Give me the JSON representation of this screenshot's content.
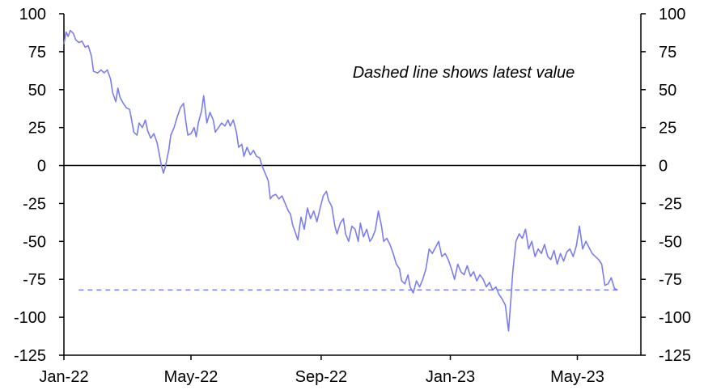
{
  "chart_data": {
    "type": "line",
    "annotation": "Dashed line shows latest value",
    "ylim": [
      -125,
      100
    ],
    "yticks": [
      100,
      75,
      50,
      25,
      0,
      -25,
      -50,
      -75,
      -100,
      -125
    ],
    "xlim": [
      "2022-01-01",
      "2023-06-30"
    ],
    "xticks": [
      {
        "date": "2022-01-01",
        "label": "Jan-22"
      },
      {
        "date": "2022-05-01",
        "label": "May-22"
      },
      {
        "date": "2022-09-01",
        "label": "Sep-22"
      },
      {
        "date": "2023-01-01",
        "label": "Jan-23"
      },
      {
        "date": "2023-05-01",
        "label": "May-23"
      }
    ],
    "grid": false,
    "zero_line": true,
    "series_color": "#7b7cf0",
    "latest_value": -82,
    "latest_value_line_start": "2022-01-15",
    "series": [
      {
        "points": [
          [
            "2022-01-01",
            80
          ],
          [
            "2022-01-03",
            88
          ],
          [
            "2022-01-05",
            85
          ],
          [
            "2022-01-07",
            89
          ],
          [
            "2022-01-10",
            87
          ],
          [
            "2022-01-12",
            83
          ],
          [
            "2022-01-15",
            81
          ],
          [
            "2022-01-18",
            82
          ],
          [
            "2022-01-21",
            78
          ],
          [
            "2022-01-24",
            79
          ],
          [
            "2022-01-27",
            72
          ],
          [
            "2022-01-29",
            62
          ],
          [
            "2022-02-02",
            61
          ],
          [
            "2022-02-05",
            63
          ],
          [
            "2022-02-08",
            61
          ],
          [
            "2022-02-11",
            63
          ],
          [
            "2022-02-14",
            57
          ],
          [
            "2022-02-16",
            48
          ],
          [
            "2022-02-19",
            42
          ],
          [
            "2022-02-21",
            51
          ],
          [
            "2022-02-23",
            45
          ],
          [
            "2022-02-26",
            41
          ],
          [
            "2022-03-01",
            38
          ],
          [
            "2022-03-04",
            37
          ],
          [
            "2022-03-06",
            30
          ],
          [
            "2022-03-08",
            22
          ],
          [
            "2022-03-11",
            20
          ],
          [
            "2022-03-13",
            28
          ],
          [
            "2022-03-16",
            25
          ],
          [
            "2022-03-19",
            30
          ],
          [
            "2022-03-21",
            23
          ],
          [
            "2022-03-24",
            18
          ],
          [
            "2022-03-27",
            21
          ],
          [
            "2022-03-30",
            15
          ],
          [
            "2022-04-01",
            8
          ],
          [
            "2022-04-03",
            0
          ],
          [
            "2022-04-05",
            -5
          ],
          [
            "2022-04-07",
            0
          ],
          [
            "2022-04-10",
            10
          ],
          [
            "2022-04-12",
            20
          ],
          [
            "2022-04-15",
            25
          ],
          [
            "2022-04-18",
            32
          ],
          [
            "2022-04-21",
            38
          ],
          [
            "2022-04-24",
            41
          ],
          [
            "2022-04-26",
            30
          ],
          [
            "2022-04-28",
            20
          ],
          [
            "2022-05-01",
            21
          ],
          [
            "2022-05-04",
            25
          ],
          [
            "2022-05-06",
            19
          ],
          [
            "2022-05-08",
            28
          ],
          [
            "2022-05-11",
            36
          ],
          [
            "2022-05-13",
            46
          ],
          [
            "2022-05-16",
            28
          ],
          [
            "2022-05-19",
            35
          ],
          [
            "2022-05-22",
            30
          ],
          [
            "2022-05-24",
            22
          ],
          [
            "2022-05-27",
            25
          ],
          [
            "2022-05-30",
            28
          ],
          [
            "2022-06-02",
            26
          ],
          [
            "2022-06-05",
            30
          ],
          [
            "2022-06-07",
            26
          ],
          [
            "2022-06-10",
            30
          ],
          [
            "2022-06-13",
            22
          ],
          [
            "2022-06-15",
            12
          ],
          [
            "2022-06-18",
            14
          ],
          [
            "2022-06-20",
            6
          ],
          [
            "2022-06-23",
            12
          ],
          [
            "2022-06-26",
            7
          ],
          [
            "2022-06-29",
            10
          ],
          [
            "2022-07-02",
            6
          ],
          [
            "2022-07-05",
            5
          ],
          [
            "2022-07-07",
            0
          ],
          [
            "2022-07-10",
            -5
          ],
          [
            "2022-07-13",
            -10
          ],
          [
            "2022-07-15",
            -22
          ],
          [
            "2022-07-17",
            -20
          ],
          [
            "2022-07-20",
            -19
          ],
          [
            "2022-07-23",
            -22
          ],
          [
            "2022-07-26",
            -20
          ],
          [
            "2022-07-29",
            -25
          ],
          [
            "2022-08-01",
            -30
          ],
          [
            "2022-08-03",
            -32
          ],
          [
            "2022-08-05",
            -39
          ],
          [
            "2022-08-08",
            -45
          ],
          [
            "2022-08-10",
            -49
          ],
          [
            "2022-08-13",
            -34
          ],
          [
            "2022-08-16",
            -42
          ],
          [
            "2022-08-19",
            -28
          ],
          [
            "2022-08-22",
            -35
          ],
          [
            "2022-08-25",
            -30
          ],
          [
            "2022-08-28",
            -37
          ],
          [
            "2022-08-31",
            -28
          ],
          [
            "2022-09-03",
            -20
          ],
          [
            "2022-09-06",
            -17
          ],
          [
            "2022-09-08",
            -23
          ],
          [
            "2022-09-11",
            -27
          ],
          [
            "2022-09-14",
            -40
          ],
          [
            "2022-09-16",
            -45
          ],
          [
            "2022-09-19",
            -38
          ],
          [
            "2022-09-22",
            -35
          ],
          [
            "2022-09-24",
            -45
          ],
          [
            "2022-09-27",
            -50
          ],
          [
            "2022-09-30",
            -40
          ],
          [
            "2022-10-03",
            -42
          ],
          [
            "2022-10-06",
            -50
          ],
          [
            "2022-10-08",
            -38
          ],
          [
            "2022-10-11",
            -47
          ],
          [
            "2022-10-14",
            -42
          ],
          [
            "2022-10-17",
            -50
          ],
          [
            "2022-10-19",
            -48
          ],
          [
            "2022-10-22",
            -43
          ],
          [
            "2022-10-25",
            -30
          ],
          [
            "2022-10-28",
            -40
          ],
          [
            "2022-10-30",
            -50
          ],
          [
            "2022-11-02",
            -48
          ],
          [
            "2022-11-05",
            -52
          ],
          [
            "2022-11-08",
            -58
          ],
          [
            "2022-11-11",
            -65
          ],
          [
            "2022-11-14",
            -68
          ],
          [
            "2022-11-16",
            -76
          ],
          [
            "2022-11-19",
            -78
          ],
          [
            "2022-11-22",
            -72
          ],
          [
            "2022-11-24",
            -80
          ],
          [
            "2022-11-27",
            -84
          ],
          [
            "2022-11-30",
            -76
          ],
          [
            "2022-12-03",
            -80
          ],
          [
            "2022-12-06",
            -75
          ],
          [
            "2022-12-09",
            -68
          ],
          [
            "2022-12-12",
            -55
          ],
          [
            "2022-12-15",
            -58
          ],
          [
            "2022-12-18",
            -54
          ],
          [
            "2022-12-21",
            -50
          ],
          [
            "2022-12-24",
            -60
          ],
          [
            "2022-12-27",
            -58
          ],
          [
            "2022-12-30",
            -62
          ],
          [
            "2023-01-02",
            -68
          ],
          [
            "2023-01-05",
            -75
          ],
          [
            "2023-01-08",
            -65
          ],
          [
            "2023-01-11",
            -70
          ],
          [
            "2023-01-14",
            -72
          ],
          [
            "2023-01-17",
            -66
          ],
          [
            "2023-01-20",
            -73
          ],
          [
            "2023-01-23",
            -70
          ],
          [
            "2023-01-26",
            -76
          ],
          [
            "2023-01-29",
            -72
          ],
          [
            "2023-02-01",
            -75
          ],
          [
            "2023-02-04",
            -80
          ],
          [
            "2023-02-07",
            -77
          ],
          [
            "2023-02-10",
            -82
          ],
          [
            "2023-02-13",
            -80
          ],
          [
            "2023-02-16",
            -85
          ],
          [
            "2023-02-19",
            -88
          ],
          [
            "2023-02-22",
            -92
          ],
          [
            "2023-02-25",
            -109
          ],
          [
            "2023-02-27",
            -90
          ],
          [
            "2023-03-01",
            -70
          ],
          [
            "2023-03-04",
            -50
          ],
          [
            "2023-03-07",
            -45
          ],
          [
            "2023-03-10",
            -48
          ],
          [
            "2023-03-13",
            -42
          ],
          [
            "2023-03-16",
            -55
          ],
          [
            "2023-03-19",
            -50
          ],
          [
            "2023-03-22",
            -60
          ],
          [
            "2023-03-25",
            -55
          ],
          [
            "2023-03-28",
            -58
          ],
          [
            "2023-03-31",
            -52
          ],
          [
            "2023-04-03",
            -60
          ],
          [
            "2023-04-06",
            -62
          ],
          [
            "2023-04-09",
            -56
          ],
          [
            "2023-04-12",
            -65
          ],
          [
            "2023-04-15",
            -58
          ],
          [
            "2023-04-18",
            -63
          ],
          [
            "2023-04-21",
            -57
          ],
          [
            "2023-04-24",
            -55
          ],
          [
            "2023-04-27",
            -60
          ],
          [
            "2023-04-30",
            -53
          ],
          [
            "2023-05-03",
            -40
          ],
          [
            "2023-05-06",
            -55
          ],
          [
            "2023-05-09",
            -50
          ],
          [
            "2023-05-12",
            -54
          ],
          [
            "2023-05-15",
            -58
          ],
          [
            "2023-05-18",
            -60
          ],
          [
            "2023-05-21",
            -62
          ],
          [
            "2023-05-24",
            -65
          ],
          [
            "2023-05-27",
            -79
          ],
          [
            "2023-05-30",
            -78
          ],
          [
            "2023-06-02",
            -74
          ],
          [
            "2023-06-05",
            -81
          ],
          [
            "2023-06-08",
            -82
          ]
        ]
      }
    ]
  }
}
